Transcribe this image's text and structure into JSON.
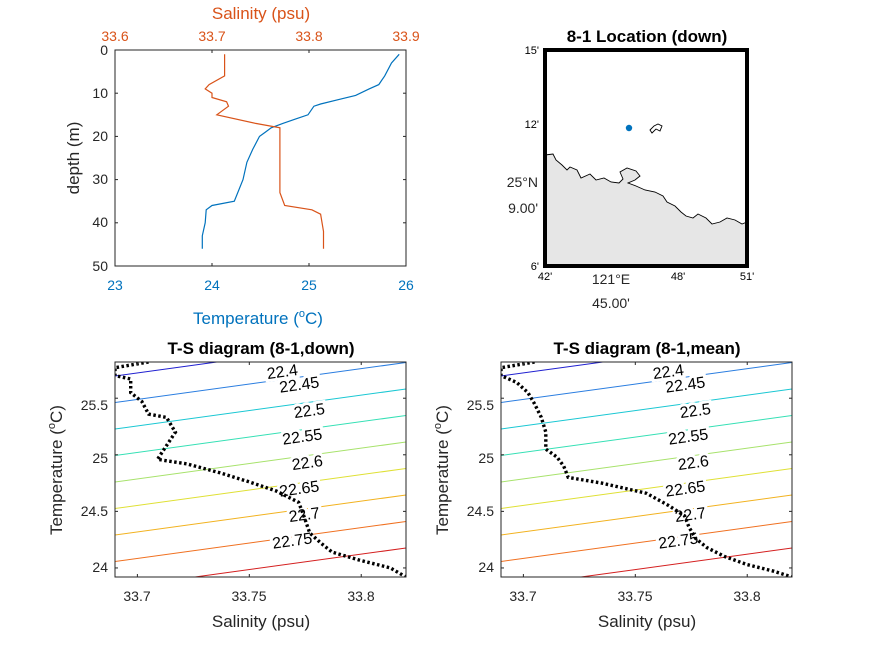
{
  "colors": {
    "temperature": "#0072BD",
    "salinity": "#D95319",
    "axis": "#262626",
    "land": "#e6e6e6",
    "station": "#0072BD",
    "contours": [
      "#1f1fd0",
      "#2a7de0",
      "#19c7d3",
      "#35e0b5",
      "#a7e26b",
      "#dfe034",
      "#f2b21f",
      "#f07020",
      "#d41f1f"
    ]
  },
  "chart_data": [
    {
      "type": "line",
      "id": "profile",
      "xlabel_bottom": "Temperature (",
      "xlabel_bottom_unit": "C)",
      "xlabel_top": "Salinity (psu)",
      "ylabel": "depth (m)",
      "xlim_bottom": [
        23,
        26
      ],
      "xticks_bottom": [
        "23",
        "24",
        "25",
        "26"
      ],
      "xlim_top": [
        33.6,
        33.9
      ],
      "xticks_top": [
        "33.6",
        "33.7",
        "33.8",
        "33.9"
      ],
      "ylim": [
        0,
        50
      ],
      "yticks": [
        "0",
        "10",
        "20",
        "30",
        "40",
        "50"
      ],
      "series": [
        {
          "axis": "bottom",
          "x": [
            25.93,
            25.85,
            25.78,
            25.72,
            25.62,
            25.48,
            25.3,
            25.12,
            25.05,
            24.99,
            24.86,
            24.73,
            24.61,
            24.55,
            24.49,
            24.42,
            24.36,
            24.32,
            24.23,
            24.0,
            23.94,
            23.93,
            23.9,
            23.9
          ],
          "y": [
            1,
            3,
            6,
            8,
            9,
            10.5,
            11.5,
            12.5,
            13,
            15,
            16,
            17,
            18,
            19,
            20,
            23,
            26,
            30,
            35,
            36,
            37,
            40,
            43,
            46
          ]
        },
        {
          "axis": "top",
          "x": [
            33.713,
            33.713,
            33.697,
            33.693,
            33.7,
            33.7,
            33.715,
            33.717,
            33.705,
            33.745,
            33.77,
            33.77,
            33.77,
            33.77,
            33.775,
            33.803,
            33.812,
            33.815,
            33.815
          ],
          "y": [
            1,
            6,
            8,
            9,
            10,
            11,
            12,
            13,
            15,
            17,
            18,
            21,
            26,
            33,
            36,
            37,
            38,
            42,
            46
          ]
        }
      ]
    },
    {
      "type": "map",
      "id": "location",
      "title": "8-1 Location (down)",
      "lat_ticks": [
        "15'",
        "12'",
        "25°N",
        "9.00'",
        "6'"
      ],
      "lon_ticks": [
        "42'",
        "121°E",
        "45.00'",
        "48'",
        "51'"
      ],
      "lon_range": [
        120.7,
        120.85
      ],
      "lat_range": [
        25.1,
        25.25
      ],
      "station": {
        "lon": 120.7833,
        "lat": 25.1967
      }
    },
    {
      "type": "line",
      "id": "ts_down",
      "title": "T-S diagram (8-1,down)",
      "xlabel": "Salinity (psu)",
      "ylabel": "Temperature (",
      "ylabel_unit": "C)",
      "xlim": [
        33.69,
        33.82
      ],
      "ylim": [
        23.92,
        25.82
      ],
      "xticks": [
        "33.7",
        "33.75",
        "33.8"
      ],
      "yticks": [
        "24",
        "24.5",
        "25",
        "25.5"
      ],
      "contours": [
        "22.4",
        "22.45",
        "22.5",
        "22.55",
        "22.6",
        "22.65",
        "22.7",
        "22.75"
      ],
      "series": [
        {
          "x": [
            33.705,
            33.69,
            33.69,
            33.697,
            33.697,
            33.702,
            33.705,
            33.713,
            33.717,
            33.712,
            33.709,
            33.712,
            33.722,
            33.737,
            33.75,
            33.762,
            33.772,
            33.774,
            33.777,
            33.782,
            33.787,
            33.799,
            33.813,
            33.82
          ],
          "y": [
            25.82,
            25.77,
            25.7,
            25.67,
            25.55,
            25.47,
            25.36,
            25.33,
            25.2,
            25.05,
            24.96,
            24.95,
            24.92,
            24.84,
            24.76,
            24.68,
            24.58,
            24.48,
            24.31,
            24.22,
            24.14,
            24.07,
            24.0,
            23.92
          ]
        }
      ]
    },
    {
      "type": "line",
      "id": "ts_mean",
      "title": "T-S diagram (8-1,mean)",
      "xlabel": "Salinity (psu)",
      "ylabel": "Temperature (",
      "ylabel_unit": "C)",
      "xlim": [
        33.69,
        33.82
      ],
      "ylim": [
        23.92,
        25.82
      ],
      "xticks": [
        "33.7",
        "33.75",
        "33.8"
      ],
      "yticks": [
        "24",
        "24.5",
        "25",
        "25.5"
      ],
      "contours": [
        "22.4",
        "22.45",
        "22.5",
        "22.55",
        "22.6",
        "22.65",
        "22.7",
        "22.75"
      ],
      "series": [
        {
          "x": [
            33.705,
            33.69,
            33.69,
            33.697,
            33.702,
            33.705,
            33.708,
            33.71,
            33.71,
            33.715,
            33.718,
            33.72,
            33.735,
            33.755,
            33.765,
            33.772,
            33.774,
            33.777,
            33.782,
            33.79,
            33.8,
            33.812,
            33.82
          ],
          "y": [
            25.82,
            25.77,
            25.7,
            25.64,
            25.55,
            25.45,
            25.33,
            25.2,
            25.05,
            24.98,
            24.9,
            24.8,
            24.75,
            24.66,
            24.55,
            24.46,
            24.36,
            24.26,
            24.18,
            24.1,
            24.03,
            23.97,
            23.92
          ]
        }
      ]
    }
  ]
}
